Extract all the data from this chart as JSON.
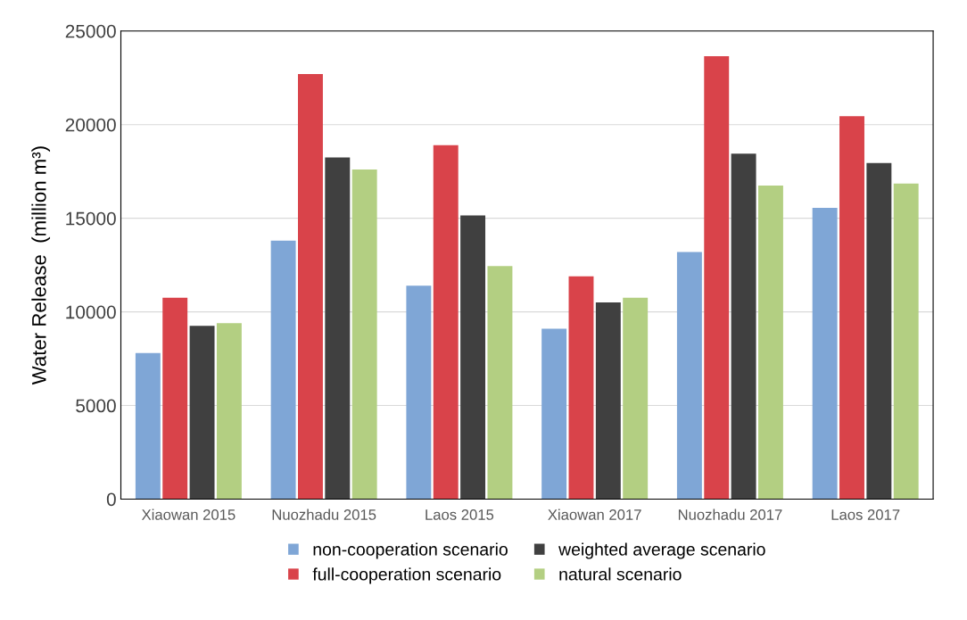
{
  "chart_data": {
    "type": "bar",
    "ylabel": "Water Release  (million m³)",
    "categories": [
      "Xiaowan 2015",
      "Nuozhadu 2015",
      "Laos 2015",
      "Xiaowan 2017",
      "Nuozhadu 2017",
      "Laos 2017"
    ],
    "series": [
      {
        "name": "non-cooperation scenario",
        "color": "#7fa6d6",
        "values": [
          7800,
          13800,
          11400,
          9100,
          13200,
          15550
        ]
      },
      {
        "name": "full-cooperation scenario",
        "color": "#d9434a",
        "values": [
          10750,
          22700,
          18900,
          11900,
          23650,
          20450
        ]
      },
      {
        "name": "weighted average scenario",
        "color": "#404040",
        "values": [
          9250,
          18250,
          15150,
          10500,
          18450,
          17950
        ]
      },
      {
        "name": "natural scenario",
        "color": "#b3cf82",
        "values": [
          9400,
          17600,
          12450,
          10750,
          16750,
          16850
        ]
      }
    ],
    "ylim": [
      0,
      25000
    ],
    "yticks": [
      0,
      5000,
      10000,
      15000,
      20000,
      25000
    ],
    "grid": "y",
    "legend": "bottom"
  }
}
